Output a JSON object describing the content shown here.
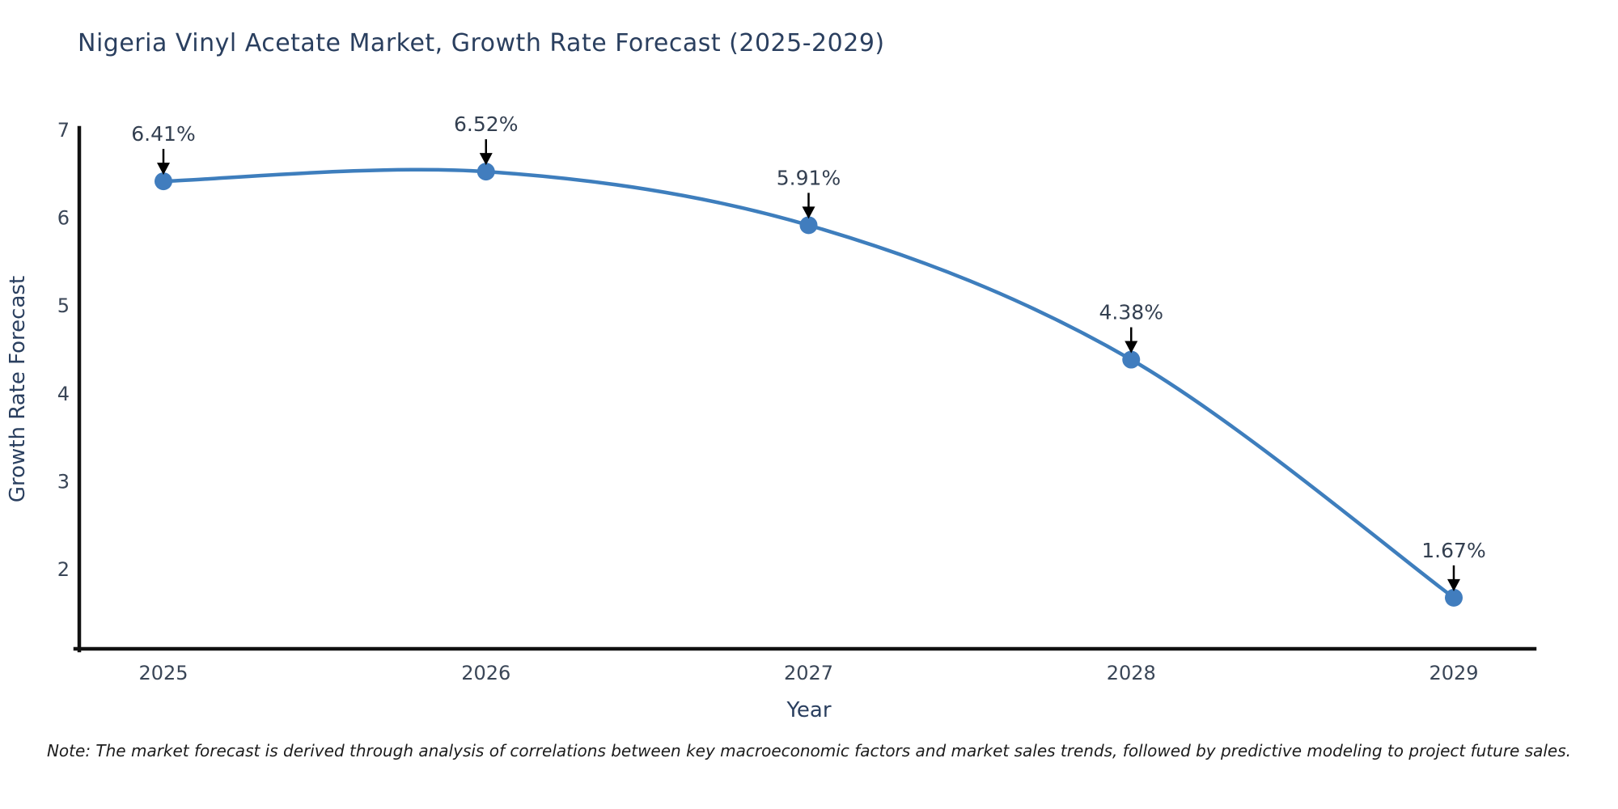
{
  "note": "Note: The market forecast is derived through analysis of correlations between key macroeconomic factors and market sales trends, followed by predictive modeling to project future sales.",
  "chart_data": {
    "type": "line",
    "title": "Nigeria Vinyl Acetate Market, Growth Rate Forecast (2025-2029)",
    "xlabel": "Year",
    "ylabel": "Growth Rate Forecast",
    "categories": [
      "2025",
      "2026",
      "2027",
      "2028",
      "2029"
    ],
    "x": [
      2025,
      2026,
      2027,
      2028,
      2029
    ],
    "values": [
      6.41,
      6.52,
      5.91,
      4.38,
      1.67
    ],
    "point_labels": [
      "6.41%",
      "6.52%",
      "5.91%",
      "4.38%",
      "1.67%"
    ],
    "y_ticks": [
      7,
      6,
      5,
      4,
      3,
      2
    ],
    "ylim": [
      1.1,
      7.0
    ],
    "grid": false,
    "legend": "none",
    "line_color": "#3e7ebd",
    "marker_color": "#417dbe",
    "axis_color": "#111111",
    "text_color": "#2a3f5f",
    "annotation_text_color": "#333f50",
    "arrow_color": "#000000"
  }
}
